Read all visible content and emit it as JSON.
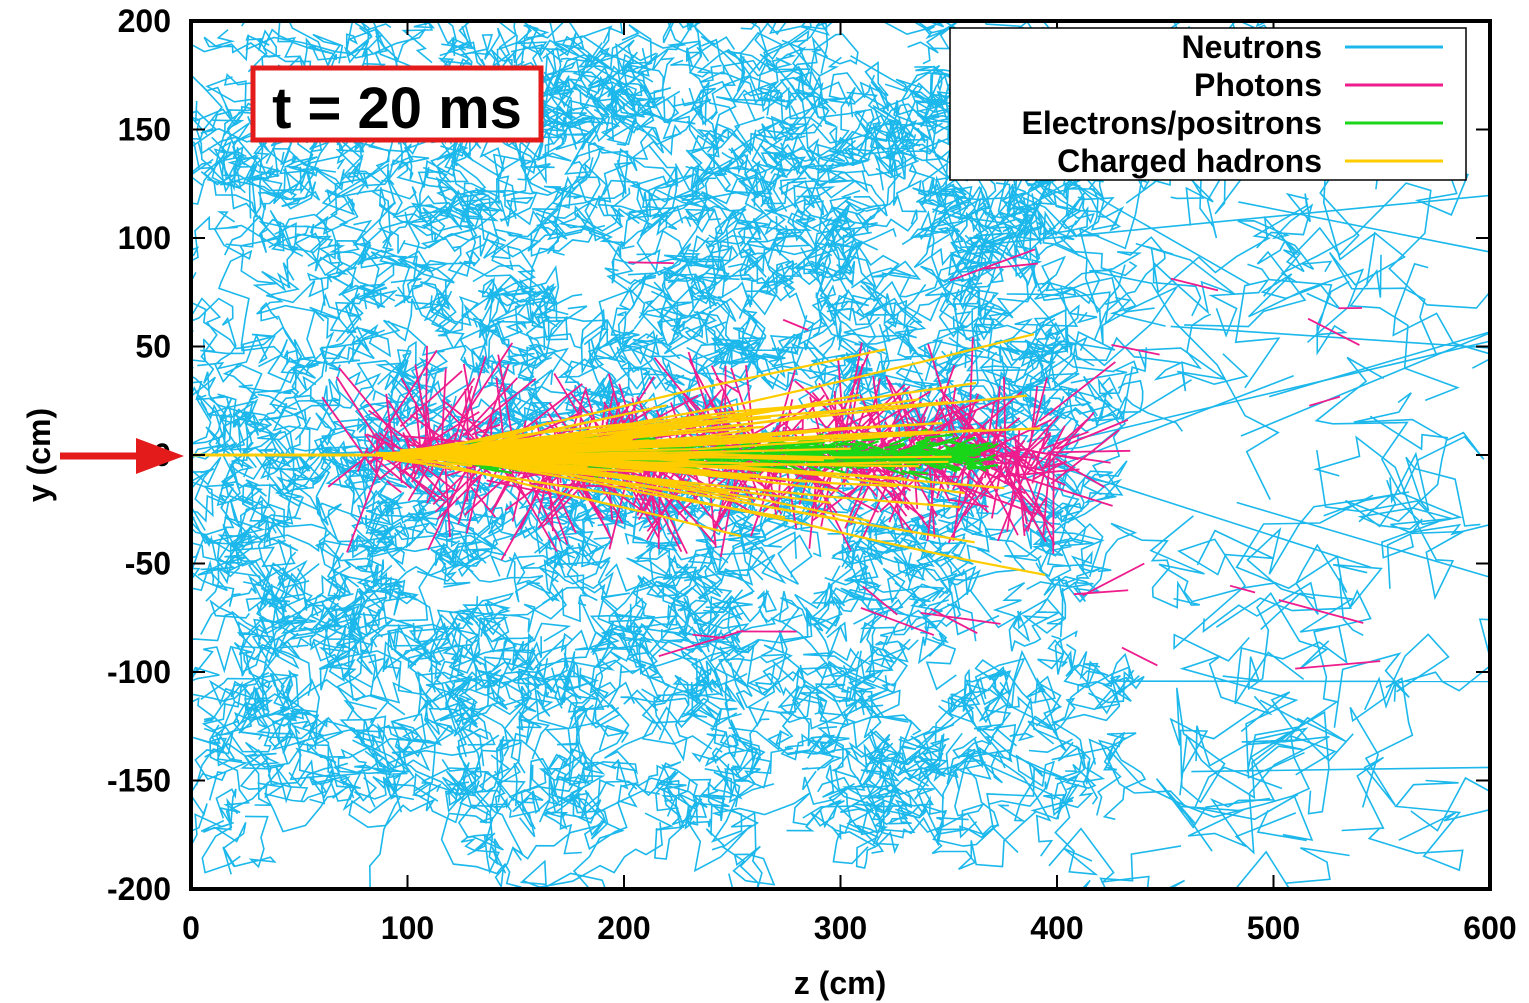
{
  "chart_data": {
    "type": "scatter",
    "title": "",
    "xlabel": "z (cm)",
    "ylabel": "y (cm)",
    "xlim": [
      0,
      600
    ],
    "ylim": [
      -200,
      200
    ],
    "x_ticks": [
      "0",
      "100",
      "200",
      "300",
      "400",
      "500",
      "600"
    ],
    "y_ticks": [
      "200",
      "150",
      "100",
      "50",
      "0",
      "-50",
      "-100",
      "-150",
      "-200"
    ],
    "annotation": "t = 20 ms",
    "beam_entry": {
      "z": 0,
      "y": 0
    },
    "grid": false,
    "legend_position": "top-right",
    "series": [
      {
        "name": "Neutrons",
        "color": "#1cb8ec",
        "extent_z": [
          0,
          600
        ],
        "extent_y": [
          -200,
          200
        ],
        "core_z": [
          0,
          420
        ],
        "core_y": [
          -170,
          190
        ]
      },
      {
        "name": "Photons",
        "color": "#ee1c8c",
        "extent_z": [
          70,
          555
        ],
        "extent_y": [
          -110,
          110
        ],
        "core_z": [
          80,
          400
        ],
        "core_y": [
          -60,
          55
        ]
      },
      {
        "name": "Electrons/positrons",
        "color": "#19d619",
        "extent_z": [
          80,
          410
        ],
        "extent_y": [
          -60,
          55
        ],
        "core_z": [
          120,
          360
        ],
        "core_y": [
          -20,
          20
        ]
      },
      {
        "name": "Charged hadrons",
        "color": "#ffcc00",
        "extent_z": [
          0,
          400
        ],
        "extent_y": [
          -80,
          75
        ],
        "core_z": [
          0,
          330
        ],
        "core_y": [
          -15,
          15
        ]
      }
    ]
  }
}
